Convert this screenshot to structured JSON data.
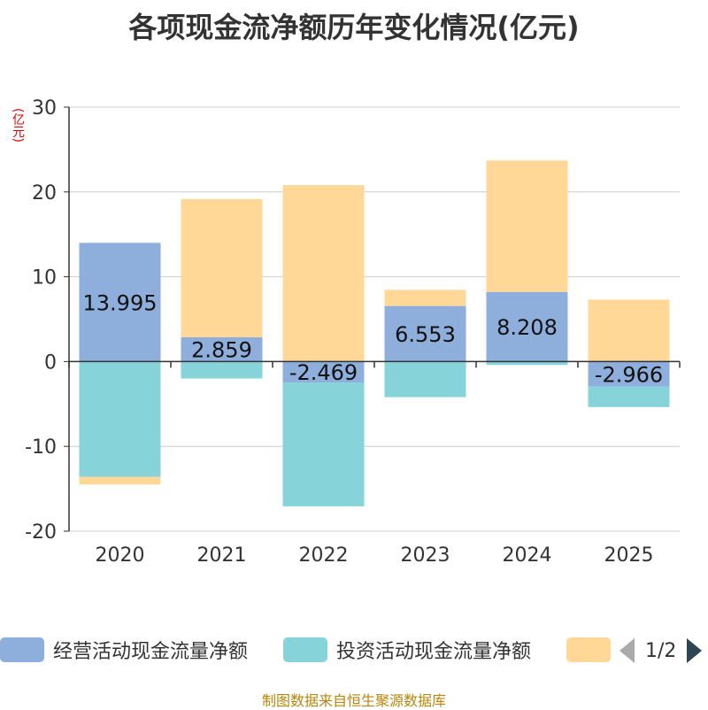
{
  "title": "各项现金流净额历年变化情况(亿元)",
  "unit_label": "(亿元)",
  "source": "制图数据来自恒生聚源数据库",
  "legend": {
    "items": [
      {
        "label": "经营活动现金流量净额",
        "color": "#8eaedb"
      },
      {
        "label": "投资活动现金流量净额",
        "color": "#86d4d9"
      },
      {
        "label": "",
        "color": "#ffd898"
      }
    ],
    "page": "1/2"
  },
  "chart_data": {
    "type": "bar",
    "stacked": true,
    "categories": [
      "2020",
      "2021",
      "2022",
      "2023",
      "2024",
      "2025"
    ],
    "ylim": [
      -20,
      30
    ],
    "yticks": [
      30,
      20,
      10,
      0,
      -10,
      -20
    ],
    "series": [
      {
        "name": "经营活动现金流量净额",
        "color": "#8eaedb",
        "values": [
          13.995,
          2.859,
          -2.469,
          6.553,
          8.208,
          -2.966
        ],
        "labels": [
          "13.995",
          "2.859",
          "-2.469",
          "6.553",
          "8.208",
          "-2.966"
        ]
      },
      {
        "name": "投资活动现金流量净额",
        "color": "#86d4d9",
        "values": [
          -13.6,
          -2.0,
          -14.6,
          -4.2,
          -0.4,
          -2.4
        ]
      },
      {
        "name": "",
        "color": "#ffd898",
        "values": [
          -0.9,
          16.3,
          20.8,
          1.9,
          15.5,
          7.3
        ]
      }
    ]
  }
}
